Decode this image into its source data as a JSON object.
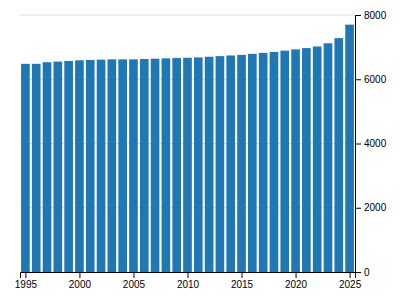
{
  "chart_data": {
    "type": "bar",
    "x": [
      1995,
      1996,
      1997,
      1998,
      1999,
      2000,
      2001,
      2002,
      2003,
      2004,
      2005,
      2006,
      2007,
      2008,
      2009,
      2010,
      2011,
      2012,
      2013,
      2014,
      2015,
      2016,
      2017,
      2018,
      2019,
      2020,
      2021,
      2022,
      2023,
      2024,
      2025
    ],
    "values": [
      6480,
      6480,
      6530,
      6550,
      6570,
      6590,
      6600,
      6610,
      6620,
      6620,
      6620,
      6630,
      6640,
      6650,
      6660,
      6670,
      6680,
      6700,
      6720,
      6740,
      6760,
      6790,
      6820,
      6850,
      6890,
      6930,
      6970,
      7020,
      7120,
      7280,
      7700
    ],
    "xlim": [
      1994.5,
      2025.5
    ],
    "xticks": [
      1995,
      2000,
      2005,
      2010,
      2015,
      2020,
      2025
    ],
    "ylim": [
      0,
      8000
    ],
    "yticks": [
      0,
      2000,
      4000,
      6000,
      8000
    ],
    "grid": true
  }
}
